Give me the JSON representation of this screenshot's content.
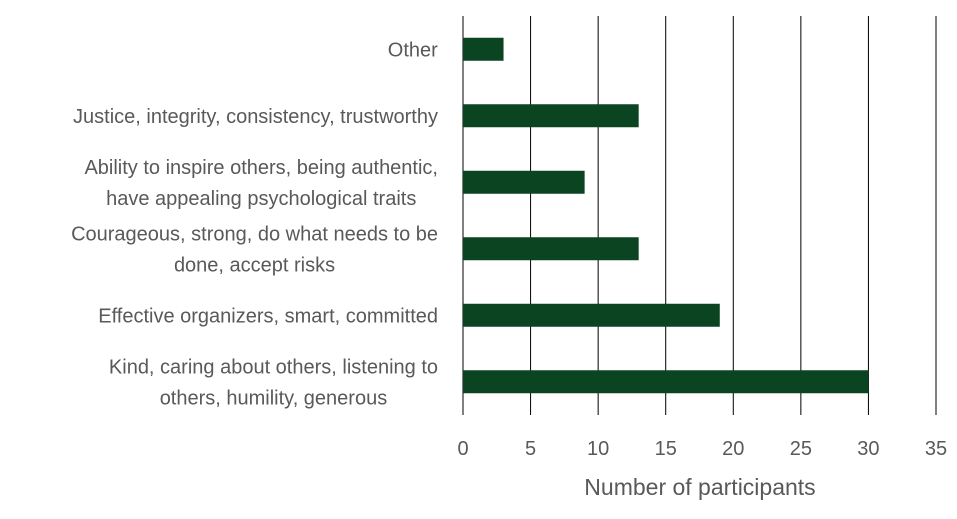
{
  "chart_data": {
    "type": "bar",
    "orientation": "horizontal",
    "categories": [
      "Other",
      "Justice, integrity, consistency, trustworthy",
      "Ability to inspire others, being authentic,\nhave appealing psychological traits",
      "Courageous, strong, do what needs to be\ndone, accept risks",
      "Effective organizers, smart, committed",
      "Kind, caring about others, listening to\nothers, humility, generous"
    ],
    "values": [
      3,
      13,
      9,
      13,
      19,
      30
    ],
    "xlabel": "Number of participants",
    "ylabel": "",
    "xlim": [
      0,
      35
    ],
    "xticks": [
      0,
      5,
      10,
      15,
      20,
      25,
      30,
      35
    ],
    "grid": true,
    "bar_color": "#0b4421"
  }
}
